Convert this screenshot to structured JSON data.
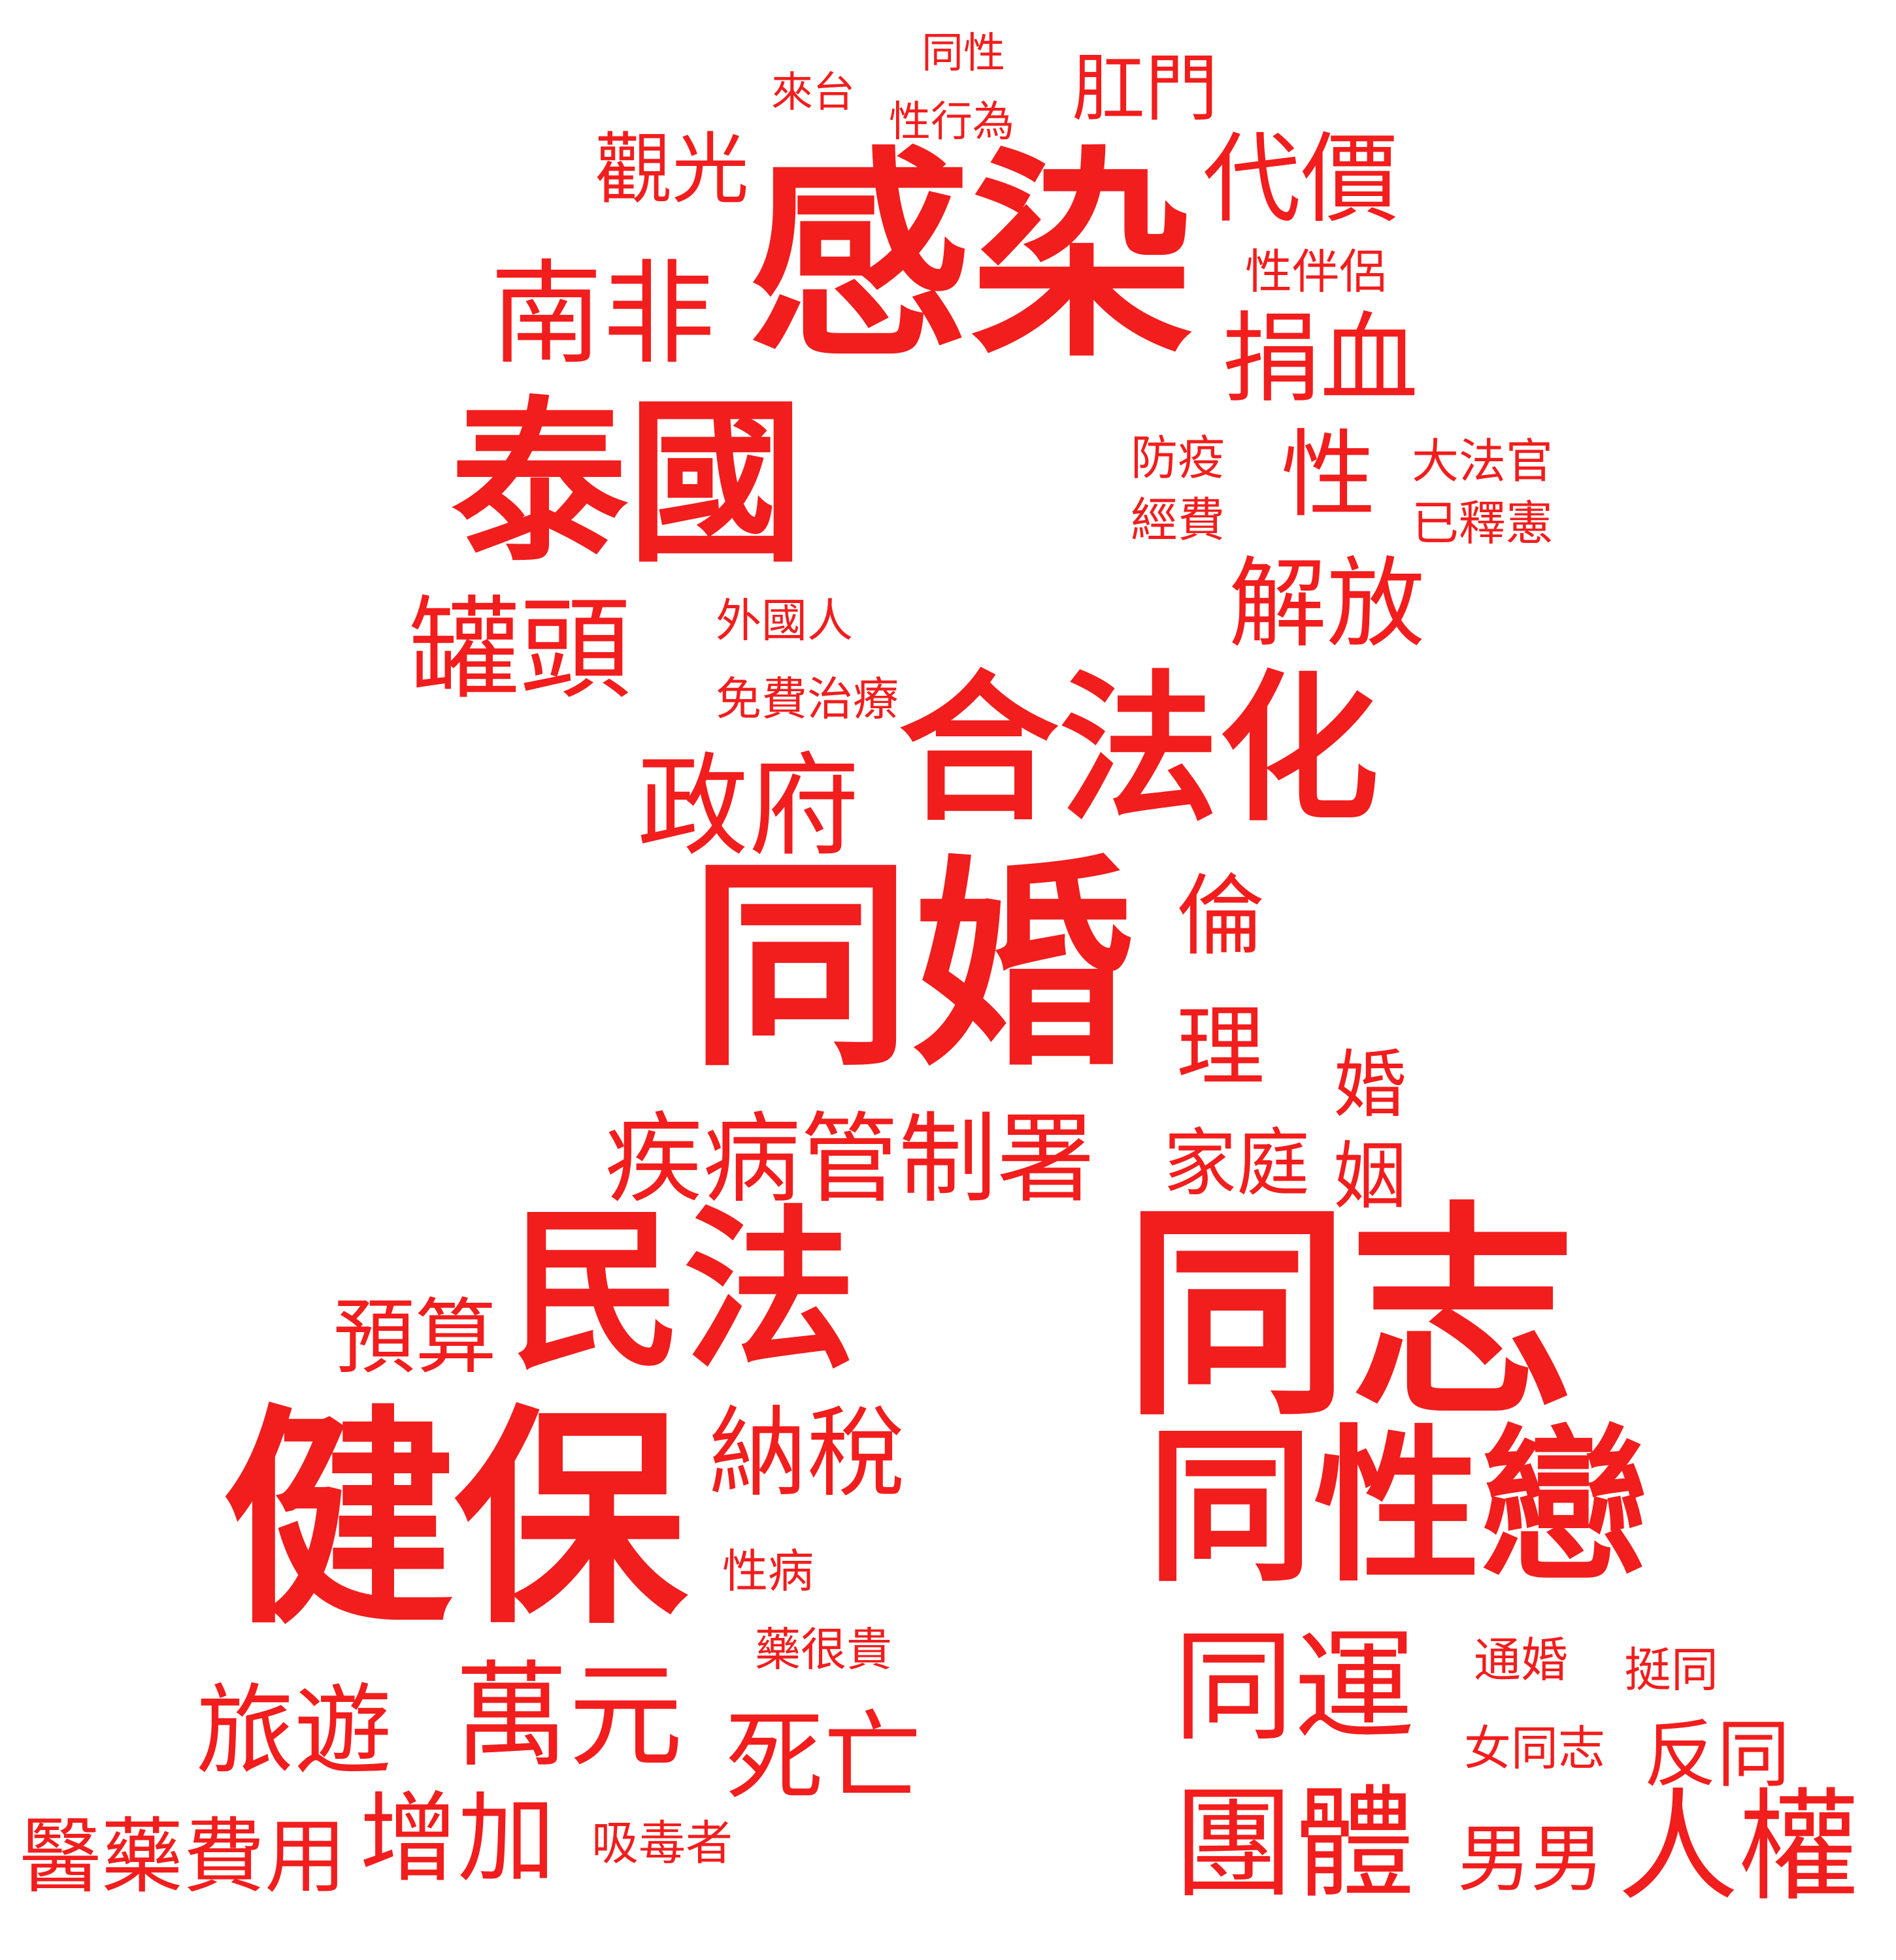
{
  "colors": {
    "text": "#f21d1d",
    "background": "#ffffff"
  },
  "words": {
    "w01": "同性",
    "w02": "來台",
    "w03": "性行為",
    "w04": "肛門",
    "w05": "觀光",
    "w06": "感染",
    "w07": "代價",
    "w08": "性伴侶",
    "w09": "南非",
    "w10": "捐血",
    "w11": "泰國",
    "w12": "防疫",
    "w13": "經費",
    "w14": "性",
    "w15": "大法官",
    "w16": "已釋憲",
    "w17": "解放",
    "w18": "罐頭",
    "w19": "外國人",
    "w20": "免費治療",
    "w21": "合法化",
    "w22": "政府",
    "w23": "同婚",
    "w24": "倫",
    "w25": "理",
    "w26": "婚",
    "w27": "姻",
    "w28": "疾病管制署",
    "w29": "家庭",
    "w30": "民法",
    "w31": "同志",
    "w32": "預算",
    "w33": "健保",
    "w34": "納稅",
    "w35": "同性戀",
    "w36": "性病",
    "w37": "藥很貴",
    "w38": "同運",
    "w39": "通婚",
    "w40": "挺同",
    "w41": "旅遊",
    "w42": "萬元",
    "w43": "死亡",
    "w44": "女同志",
    "w45": "反同",
    "w46": "醫藥費用",
    "w47": "增加",
    "w48": "吸毒者",
    "w49": "團體",
    "w50": "男男",
    "w51": "人權"
  }
}
